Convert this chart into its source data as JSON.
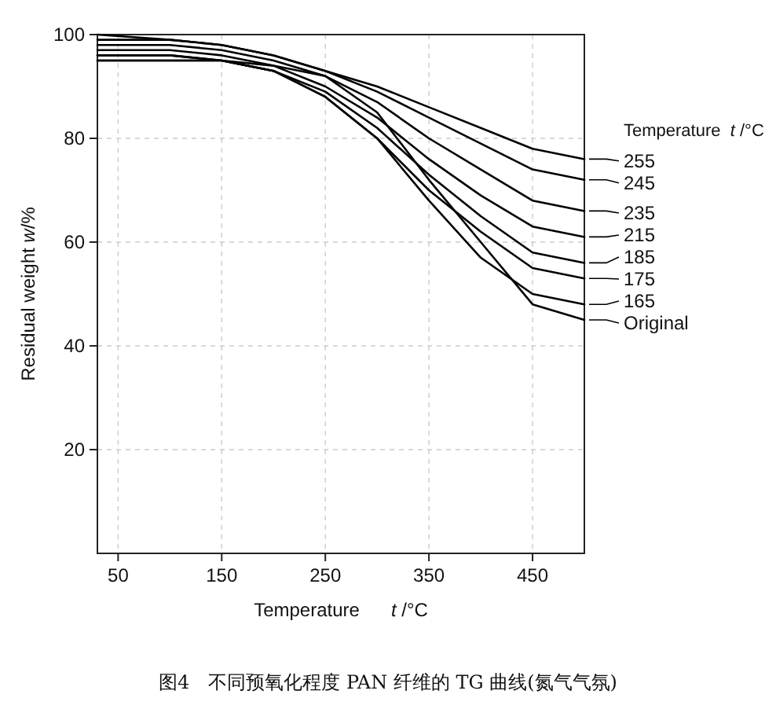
{
  "chart_data": {
    "type": "line",
    "title": "图4　不同预氧化程度 PAN 纤维的 TG 曲线(氮气气氛)",
    "xlabel": "Temperature      *t* /°C",
    "ylabel": "Residual weight *w*/%",
    "legend_title": "Temperature  *t* /°C",
    "x": [
      30,
      100,
      150,
      200,
      250,
      300,
      350,
      400,
      450,
      500
    ],
    "xlim": [
      30,
      500
    ],
    "xticks": [
      50,
      150,
      250,
      350,
      450
    ],
    "ylim": [
      0,
      100
    ],
    "yticks": [
      20,
      40,
      60,
      80,
      100
    ],
    "grid": true,
    "legend": "right",
    "series": [
      {
        "name": "Original",
        "color": "#000000",
        "values": [
          95,
          95,
          95,
          94,
          92,
          85,
          72,
          60,
          48,
          45
        ]
      },
      {
        "name": "165",
        "color": "#000000",
        "values": [
          95,
          95,
          95,
          93,
          88,
          80,
          68,
          57,
          50,
          48
        ]
      },
      {
        "name": "175",
        "color": "#000000",
        "values": [
          96,
          96,
          95,
          93,
          88,
          80,
          70,
          62,
          55,
          53
        ]
      },
      {
        "name": "185",
        "color": "#000000",
        "values": [
          96,
          96,
          95,
          93,
          89,
          82,
          73,
          65,
          58,
          56
        ]
      },
      {
        "name": "215",
        "color": "#000000",
        "values": [
          97,
          97,
          96,
          94,
          90,
          84,
          76,
          69,
          63,
          61
        ]
      },
      {
        "name": "235",
        "color": "#000000",
        "values": [
          98,
          98,
          97,
          95,
          92,
          87,
          80,
          74,
          68,
          66
        ]
      },
      {
        "name": "245",
        "color": "#000000",
        "values": [
          99,
          99,
          98,
          96,
          93,
          89,
          84,
          79,
          74,
          72
        ]
      },
      {
        "name": "255",
        "color": "#000000",
        "values": [
          100,
          99,
          98,
          96,
          93,
          90,
          86,
          82,
          78,
          76
        ]
      }
    ]
  }
}
